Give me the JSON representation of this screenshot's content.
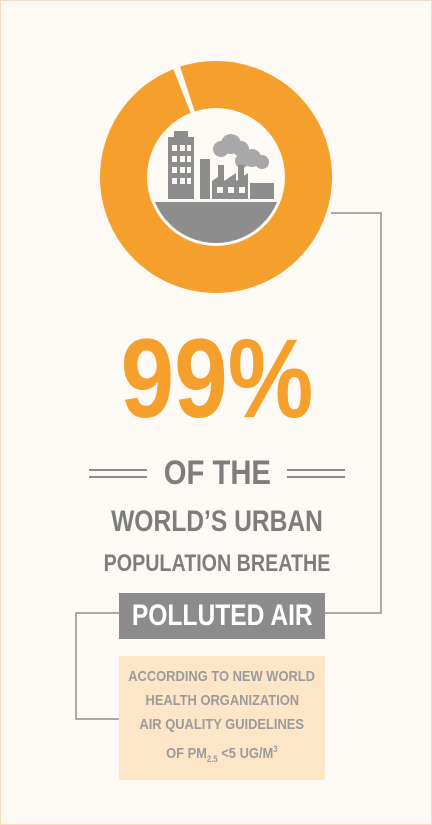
{
  "headline": {
    "percent": "99%",
    "of_the": "OF THE",
    "line2": "WORLD’S URBAN",
    "line3": "POPULATION BREATHE",
    "highlight": "POLLUTED AIR"
  },
  "note": {
    "line1": "ACCORDING TO NEW WORLD",
    "line2": "HEALTH ORGANIZATION",
    "line3": "AIR QUALITY GUIDELINES",
    "line4_prefix": "OF PM",
    "line4_sub": "2.5",
    "line4_mid": " <5 UG/M",
    "line4_sup": "3"
  },
  "donut": {
    "value_percent": 99,
    "icon": "city-factory-pollution-icon"
  },
  "colors": {
    "accent": "#f59f2d",
    "text_gray": "#7d7d7d",
    "highlight_bg": "#8c8c8d",
    "note_bg": "#fde6c8",
    "page_bg": "#fdfaf5"
  }
}
